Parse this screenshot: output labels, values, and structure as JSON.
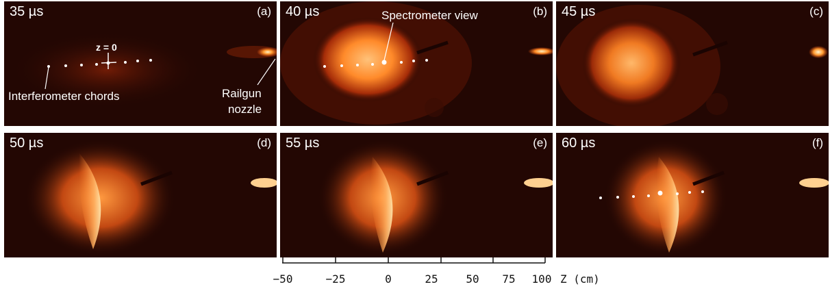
{
  "colors": {
    "background": "#230703",
    "glow_core": "#ffd890",
    "glow_mid": "#ff7a20",
    "glow_outer": "#a12a08",
    "label": "#ffffff"
  },
  "panels": [
    {
      "id": "(a)",
      "time": "35 µs",
      "plasma_intensity": 0.15,
      "annotations": {
        "z0": "z = 0",
        "interferometer": "Interferometer chords",
        "railgun_line1": "Railgun",
        "railgun_line2": "nozzle"
      }
    },
    {
      "id": "(b)",
      "time": "40 µs",
      "plasma_intensity": 0.95,
      "annotations": {
        "spectrometer": "Spectrometer view"
      }
    },
    {
      "id": "(c)",
      "time": "45 µs",
      "plasma_intensity": 0.85
    },
    {
      "id": "(d)",
      "time": "50 µs",
      "plasma_intensity": 0.6
    },
    {
      "id": "(e)",
      "time": "55 µs",
      "plasma_intensity": 0.65
    },
    {
      "id": "(f)",
      "time": "60 µs",
      "plasma_intensity": 0.7
    }
  ],
  "axis": {
    "ticks": [
      "−50",
      "−25",
      "0",
      "25",
      "50",
      "75",
      "100"
    ],
    "unit": "Z (cm)"
  }
}
